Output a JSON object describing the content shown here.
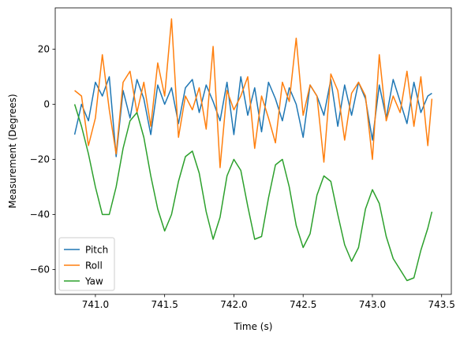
{
  "chart_data": {
    "type": "line",
    "title": "",
    "xlabel": "Time (s)",
    "ylabel": "Measurement (Degrees)",
    "xlim": [
      740.71,
      743.57
    ],
    "ylim": [
      -69,
      35
    ],
    "xticks": [
      741.0,
      741.5,
      742.0,
      742.5,
      743.0,
      743.5
    ],
    "xtick_labels": [
      "741.0",
      "741.5",
      "742.0",
      "742.5",
      "743.0",
      "743.5"
    ],
    "yticks": [
      -60,
      -40,
      -20,
      0,
      20
    ],
    "ytick_labels": [
      "−60",
      "−40",
      "−20",
      "0",
      "20"
    ],
    "grid": false,
    "legend_position": "lower-left",
    "series": [
      {
        "name": "Pitch",
        "color": "#1f77b4",
        "x": [
          740.85,
          740.9,
          740.95,
          741.0,
          741.05,
          741.1,
          741.15,
          741.2,
          741.25,
          741.3,
          741.35,
          741.4,
          741.45,
          741.5,
          741.55,
          741.6,
          741.65,
          741.7,
          741.75,
          741.8,
          741.85,
          741.9,
          741.95,
          742.0,
          742.05,
          742.1,
          742.15,
          742.2,
          742.25,
          742.3,
          742.35,
          742.4,
          742.45,
          742.5,
          742.55,
          742.6,
          742.65,
          742.7,
          742.75,
          742.8,
          742.85,
          742.9,
          742.95,
          743.0,
          743.05,
          743.1,
          743.15,
          743.2,
          743.25,
          743.3,
          743.35,
          743.4,
          743.43
        ],
        "y": [
          -11,
          0,
          -6,
          8,
          3,
          10,
          -19,
          5,
          -5,
          9,
          2,
          -11,
          7,
          0,
          6,
          -7,
          6,
          9,
          -3,
          7,
          1,
          -6,
          8,
          -11,
          10,
          -4,
          6,
          -10,
          8,
          2,
          -6,
          6,
          0,
          -12,
          7,
          3,
          -4,
          9,
          -8,
          7,
          -4,
          8,
          2,
          -13,
          7,
          -5,
          9,
          1,
          -7,
          8,
          -3,
          3,
          4
        ]
      },
      {
        "name": "Roll",
        "color": "#ff7f0e",
        "x": [
          740.85,
          740.9,
          740.95,
          741.0,
          741.05,
          741.1,
          741.15,
          741.2,
          741.25,
          741.3,
          741.35,
          741.4,
          741.45,
          741.5,
          741.55,
          741.6,
          741.65,
          741.7,
          741.75,
          741.8,
          741.85,
          741.9,
          741.95,
          742.0,
          742.05,
          742.1,
          742.15,
          742.2,
          742.25,
          742.3,
          742.35,
          742.4,
          742.45,
          742.5,
          742.55,
          742.6,
          742.65,
          742.7,
          742.75,
          742.8,
          742.85,
          742.9,
          742.95,
          743.0,
          743.05,
          743.1,
          743.15,
          743.2,
          743.25,
          743.3,
          743.35,
          743.4,
          743.43
        ],
        "y": [
          5,
          3,
          -15,
          -5,
          18,
          -2,
          -18,
          8,
          12,
          -3,
          8,
          -8,
          15,
          3,
          31,
          -12,
          3,
          -2,
          6,
          -9,
          21,
          -23,
          5,
          -2,
          3,
          10,
          -16,
          3,
          -5,
          -14,
          8,
          1,
          24,
          -4,
          7,
          3,
          -21,
          11,
          5,
          -13,
          4,
          8,
          3,
          -20,
          18,
          -6,
          3,
          -3,
          12,
          -8,
          10,
          -15,
          2
        ]
      },
      {
        "name": "Yaw",
        "color": "#2ca02c",
        "x": [
          740.85,
          740.9,
          740.95,
          741.0,
          741.05,
          741.1,
          741.15,
          741.2,
          741.25,
          741.3,
          741.35,
          741.4,
          741.45,
          741.5,
          741.55,
          741.6,
          741.65,
          741.7,
          741.75,
          741.8,
          741.85,
          741.9,
          741.95,
          742.0,
          742.05,
          742.1,
          742.15,
          742.2,
          742.25,
          742.3,
          742.35,
          742.4,
          742.45,
          742.5,
          742.55,
          742.6,
          742.65,
          742.7,
          742.75,
          742.8,
          742.85,
          742.9,
          742.95,
          743.0,
          743.05,
          743.1,
          743.15,
          743.2,
          743.25,
          743.3,
          743.35,
          743.4,
          743.43
        ],
        "y": [
          0,
          -8,
          -18,
          -30,
          -40,
          -40,
          -30,
          -16,
          -6,
          -3,
          -12,
          -26,
          -38,
          -46,
          -40,
          -28,
          -19,
          -17,
          -25,
          -39,
          -49,
          -41,
          -26,
          -20,
          -24,
          -37,
          -49,
          -48,
          -34,
          -22,
          -20,
          -30,
          -44,
          -52,
          -47,
          -33,
          -26,
          -28,
          -40,
          -51,
          -57,
          -52,
          -38,
          -31,
          -36,
          -48,
          -56,
          -60,
          -64,
          -63,
          -53,
          -45,
          -39
        ]
      }
    ]
  }
}
